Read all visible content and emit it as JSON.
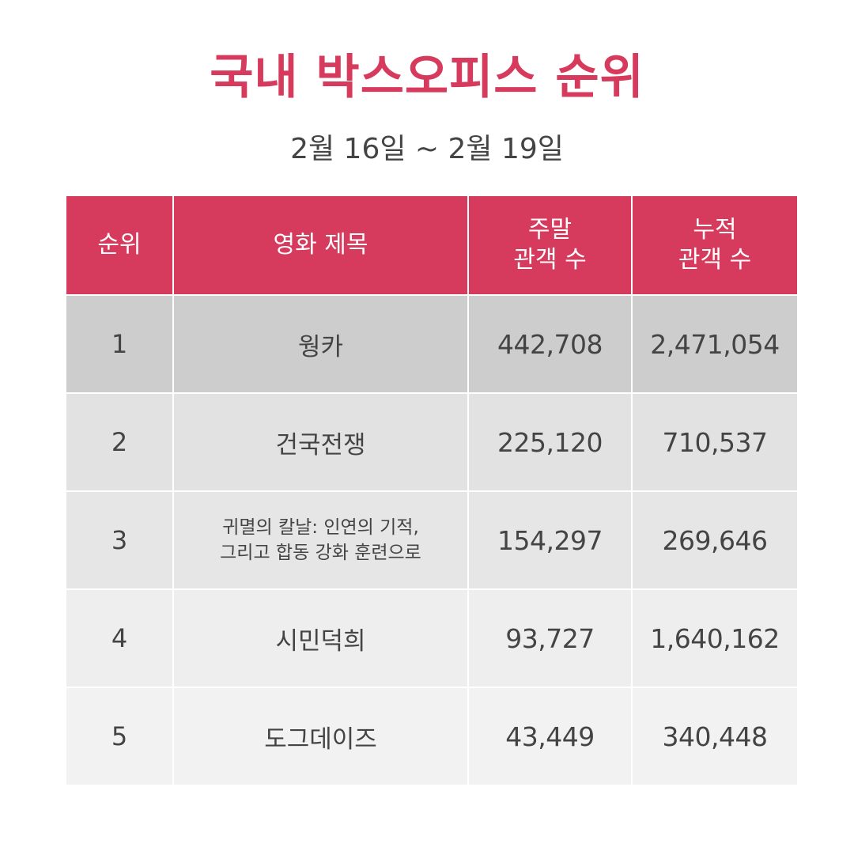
{
  "header": {
    "title": "국내 박스오피스 순위",
    "date_range": "2월 16일 ~ 2월 19일"
  },
  "colors": {
    "accent": "#d63a5c",
    "text": "#444444"
  },
  "table": {
    "columns": [
      "순위",
      "영화 제목",
      "주말\n관객 수",
      "누적\n관객 수"
    ],
    "rows": [
      {
        "rank": "1",
        "title": "웡카",
        "weekend": "442,708",
        "total": "2,471,054"
      },
      {
        "rank": "2",
        "title": "건국전쟁",
        "weekend": "225,120",
        "total": "710,537"
      },
      {
        "rank": "3",
        "title": "귀멸의 칼날: 인연의 기적,\n그리고 합동 강화 훈련으로",
        "weekend": "154,297",
        "total": "269,646"
      },
      {
        "rank": "4",
        "title": "시민덕희",
        "weekend": "93,727",
        "total": "1,640,162"
      },
      {
        "rank": "5",
        "title": "도그데이즈",
        "weekend": "43,449",
        "total": "340,448"
      }
    ]
  }
}
